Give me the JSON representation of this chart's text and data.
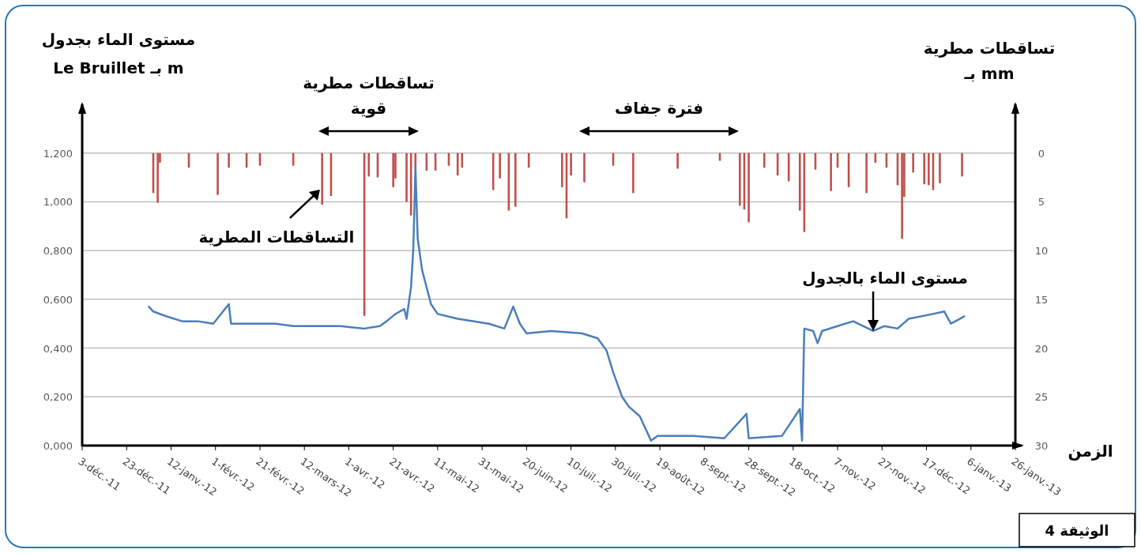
{
  "chart_data": {
    "type": "line",
    "ylabel": "مستوى الماء بجدول\nLe Bruillet بـ m",
    "y2label": "تساقطات مطرية\nبـ mm",
    "xlabel": "الزمن",
    "xlim": [
      "2011-12-03",
      "2013-01-26"
    ],
    "xticks": [
      {
        "value": "2011-12-03",
        "label": "3-déc.-11"
      },
      {
        "value": "2011-12-23",
        "label": "23-déc.-11"
      },
      {
        "value": "2012-01-12",
        "label": "12-janv.-12"
      },
      {
        "value": "2012-02-01",
        "label": "1-févr.-12"
      },
      {
        "value": "2012-02-21",
        "label": "21-févr.-12"
      },
      {
        "value": "2012-03-12",
        "label": "12-mars-12"
      },
      {
        "value": "2012-04-01",
        "label": "1-avr.-12"
      },
      {
        "value": "2012-04-21",
        "label": "21-avr.-12"
      },
      {
        "value": "2012-05-11",
        "label": "11-mai-12"
      },
      {
        "value": "2012-05-31",
        "label": "31-mai-12"
      },
      {
        "value": "2012-06-20",
        "label": "20-juin-12"
      },
      {
        "value": "2012-07-10",
        "label": "10-juil.-12"
      },
      {
        "value": "2012-07-30",
        "label": "30-juil.-12"
      },
      {
        "value": "2012-08-19",
        "label": "19-août-12"
      },
      {
        "value": "2012-09-08",
        "label": "8-sept.-12"
      },
      {
        "value": "2012-09-28",
        "label": "28-sept.-12"
      },
      {
        "value": "2012-10-18",
        "label": "18-oct.-12"
      },
      {
        "value": "2012-11-07",
        "label": "7-nov.-12"
      },
      {
        "value": "2012-11-27",
        "label": "27-nov.-12"
      },
      {
        "value": "2012-12-17",
        "label": "17-déc.-12"
      },
      {
        "value": "2013-01-06",
        "label": "6-janv.-13"
      },
      {
        "value": "2013-01-26",
        "label": "26-janv.-13"
      }
    ],
    "ylim": [
      0,
      1.4
    ],
    "yticks": [
      {
        "value": 0,
        "label": "0,000"
      },
      {
        "value": 0.2,
        "label": "0,200"
      },
      {
        "value": 0.4,
        "label": "0,400"
      },
      {
        "value": 0.6,
        "label": "0,600"
      },
      {
        "value": 0.8,
        "label": "0,800"
      },
      {
        "value": 1.0,
        "label": "1,000"
      },
      {
        "value": 1.2,
        "label": "1,200"
      }
    ],
    "y2lim": [
      30,
      -5
    ],
    "y2ticks": [
      0,
      5,
      10,
      15,
      20,
      25,
      30
    ],
    "grid": "y",
    "series": [
      {
        "type": "bar",
        "axis": "y2",
        "color": "#c0504d",
        "x": [
          "2012-01-04",
          "2012-01-06",
          "2012-01-07",
          "2012-01-20",
          "2012-02-02",
          "2012-02-07",
          "2012-02-15",
          "2012-02-21",
          "2012-03-07",
          "2012-03-20",
          "2012-03-24",
          "2012-04-08",
          "2012-04-10",
          "2012-04-14",
          "2012-04-21",
          "2012-04-22",
          "2012-04-27",
          "2012-04-29",
          "2012-05-01",
          "2012-05-06",
          "2012-05-10",
          "2012-05-16",
          "2012-05-20",
          "2012-05-22",
          "2012-06-05",
          "2012-06-08",
          "2012-06-12",
          "2012-06-15",
          "2012-06-21",
          "2012-07-06",
          "2012-07-08",
          "2012-07-10",
          "2012-07-16",
          "2012-07-29",
          "2012-08-07",
          "2012-08-27",
          "2012-09-15",
          "2012-09-24",
          "2012-09-26",
          "2012-09-28",
          "2012-10-05",
          "2012-10-11",
          "2012-10-16",
          "2012-10-21",
          "2012-10-23",
          "2012-10-28",
          "2012-11-04",
          "2012-11-07",
          "2012-11-12",
          "2012-11-20",
          "2012-11-24",
          "2012-11-29",
          "2012-12-04",
          "2012-12-06",
          "2012-12-07",
          "2012-12-11",
          "2012-12-16",
          "2012-12-18",
          "2012-12-20",
          "2012-12-23",
          "2013-01-02"
        ],
        "values": [
          4.1,
          5.1,
          1.0,
          1.5,
          4.3,
          1.5,
          1.5,
          1.3,
          1.3,
          5.3,
          4.4,
          16.7,
          2.4,
          2.5,
          3.5,
          2.6,
          5.0,
          6.4,
          1.6,
          1.8,
          1.8,
          1.3,
          2.3,
          1.5,
          3.8,
          2.6,
          5.9,
          5.5,
          1.5,
          3.5,
          6.7,
          2.3,
          3.0,
          1.3,
          4.1,
          1.6,
          0.8,
          5.4,
          5.8,
          7.1,
          1.5,
          2.3,
          2.9,
          5.9,
          8.1,
          1.7,
          3.9,
          1.5,
          3.5,
          4.1,
          1.0,
          1.5,
          3.3,
          8.8,
          4.5,
          2.0,
          3.2,
          3.3,
          3.8,
          3.1,
          2.4
        ]
      },
      {
        "axis": "y",
        "color": "#4a7ebb",
        "x": [
          "2012-01-02",
          "2012-01-04",
          "2012-01-10",
          "2012-01-17",
          "2012-01-24",
          "2012-01-31",
          "2012-02-07",
          "2012-02-08",
          "2012-02-18",
          "2012-02-28",
          "2012-03-07",
          "2012-03-17",
          "2012-03-28",
          "2012-04-08",
          "2012-04-15",
          "2012-04-18",
          "2012-04-22",
          "2012-04-26",
          "2012-04-27",
          "2012-04-29",
          "2012-04-30",
          "2012-05-01",
          "2012-05-02",
          "2012-05-04",
          "2012-05-08",
          "2012-05-11",
          "2012-05-20",
          "2012-06-03",
          "2012-06-10",
          "2012-06-14",
          "2012-06-17",
          "2012-06-20",
          "2012-07-01",
          "2012-07-15",
          "2012-07-22",
          "2012-07-26",
          "2012-07-29",
          "2012-08-02",
          "2012-08-05",
          "2012-08-10",
          "2012-08-12",
          "2012-08-15",
          "2012-08-18",
          "2012-09-03",
          "2012-09-17",
          "2012-09-27",
          "2012-09-28",
          "2012-10-13",
          "2012-10-21",
          "2012-10-22",
          "2012-10-23",
          "2012-10-27",
          "2012-10-29",
          "2012-10-31",
          "2012-11-07",
          "2012-11-14",
          "2012-11-23",
          "2012-11-28",
          "2012-12-04",
          "2012-12-09",
          "2012-12-20",
          "2012-12-25",
          "2012-12-28",
          "2013-01-01",
          "2013-01-03"
        ],
        "values": [
          0.57,
          0.55,
          0.53,
          0.51,
          0.51,
          0.5,
          0.58,
          0.5,
          0.5,
          0.5,
          0.49,
          0.49,
          0.49,
          0.48,
          0.49,
          0.51,
          0.54,
          0.56,
          0.52,
          0.65,
          0.8,
          1.14,
          0.85,
          0.72,
          0.58,
          0.54,
          0.52,
          0.5,
          0.48,
          0.57,
          0.5,
          0.46,
          0.47,
          0.46,
          0.44,
          0.39,
          0.3,
          0.2,
          0.16,
          0.12,
          0.08,
          0.02,
          0.04,
          0.04,
          0.03,
          0.13,
          0.03,
          0.04,
          0.15,
          0.02,
          0.48,
          0.47,
          0.42,
          0.47,
          0.49,
          0.51,
          0.47,
          0.49,
          0.48,
          0.52,
          0.54,
          0.55,
          0.5,
          0.52,
          0.53
        ]
      }
    ],
    "annotations": [
      {
        "text": "التساقطات المطرية",
        "x": "2012-03-19",
        "y": 1.05
      },
      {
        "text": "مستوى الماء بالجدول",
        "x": "2012-11-23",
        "y": 0.47
      },
      "تساقطات مطرية\nقوية",
      "فترة جفاف",
      "الوثيقة 4"
    ]
  }
}
